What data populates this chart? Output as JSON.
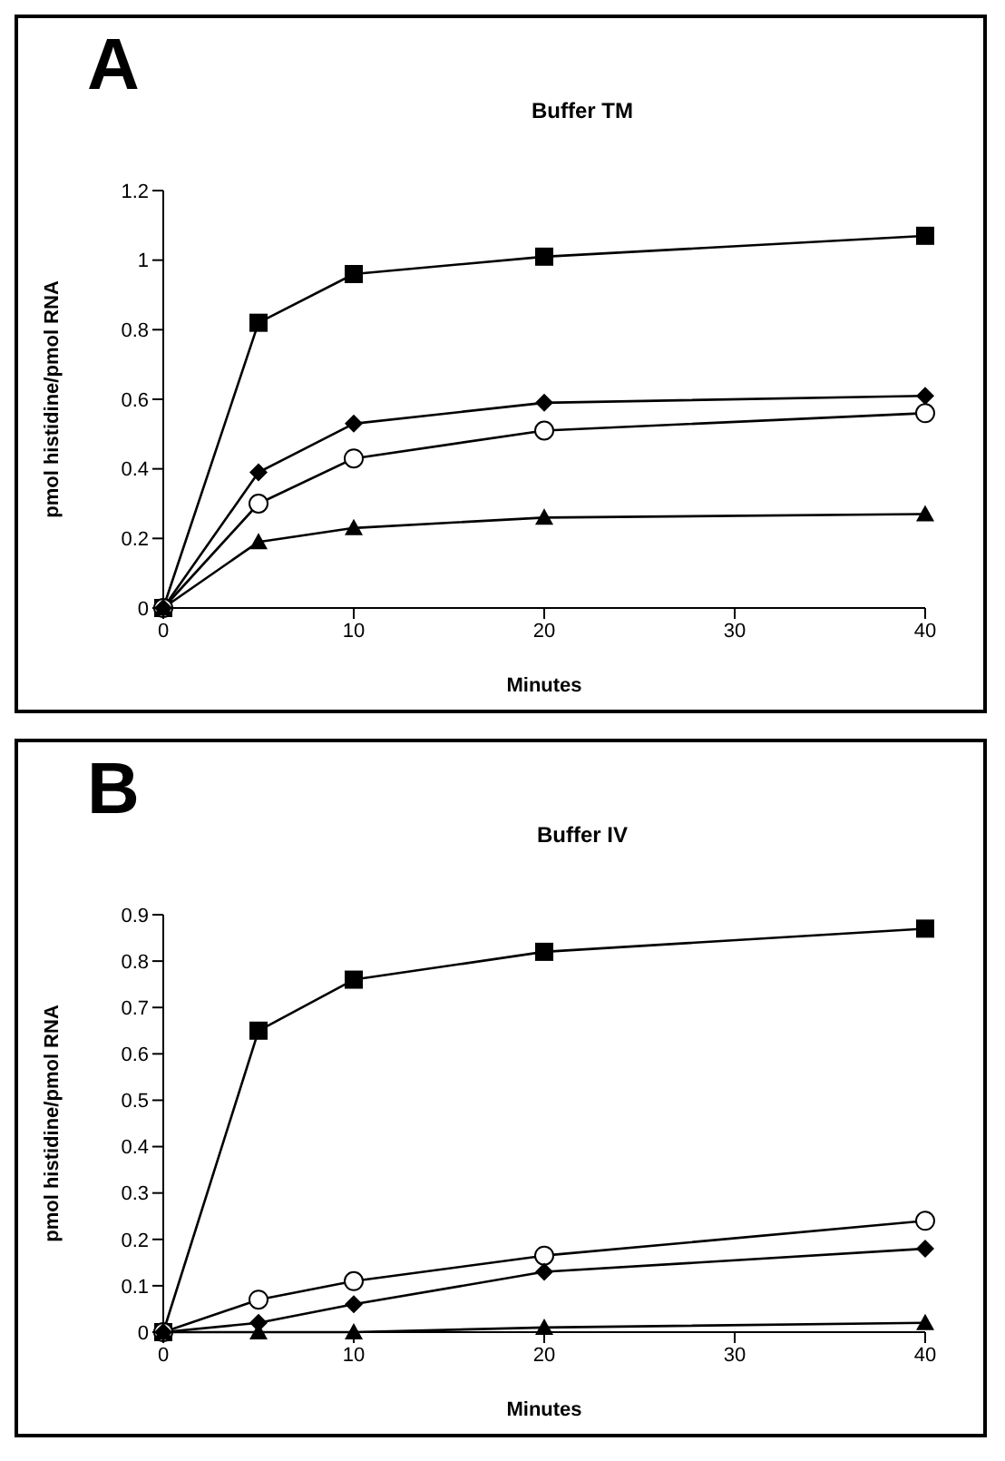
{
  "chart_data": [
    {
      "type": "line",
      "title": "Buffer TM",
      "xlabel": "Minutes",
      "ylabel": "pmol histidine/pmol RNA",
      "annotations": [
        "A"
      ],
      "x": [
        0,
        5,
        10,
        20,
        40
      ],
      "xlim": [
        0,
        40
      ],
      "xticks": [
        0,
        10,
        20,
        30,
        40
      ],
      "ylim": [
        0,
        1.2
      ],
      "yticks": [
        0,
        0.2,
        0.4,
        0.6,
        0.8,
        1,
        1.2
      ],
      "grid": false,
      "line_style": "solid",
      "series": [
        {
          "color": "#000000",
          "marker": "square",
          "values": [
            0,
            0.82,
            0.96,
            1.01,
            1.07
          ]
        },
        {
          "color": "#000000",
          "marker": "circle",
          "values": [
            0,
            0.3,
            0.43,
            0.51,
            0.56
          ]
        },
        {
          "color": "#000000",
          "marker": "diamond",
          "values": [
            0,
            0.39,
            0.53,
            0.59,
            0.61
          ]
        },
        {
          "color": "#000000",
          "marker": "triangle",
          "values": [
            0,
            0.19,
            0.23,
            0.26,
            0.27
          ]
        }
      ]
    },
    {
      "type": "line",
      "title": "Buffer IV",
      "xlabel": "Minutes",
      "ylabel": "pmol histidine/pmol RNA",
      "annotations": [
        "B"
      ],
      "x": [
        0,
        5,
        10,
        20,
        40
      ],
      "xlim": [
        0,
        40
      ],
      "xticks": [
        0,
        10,
        20,
        30,
        40
      ],
      "ylim": [
        0,
        0.9
      ],
      "yticks": [
        0,
        0.1,
        0.2,
        0.3,
        0.4,
        0.5,
        0.6,
        0.7,
        0.8,
        0.9
      ],
      "grid": false,
      "line_style": "solid",
      "series": [
        {
          "color": "#000000",
          "marker": "square",
          "values": [
            0,
            0.65,
            0.76,
            0.82,
            0.87
          ]
        },
        {
          "color": "#000000",
          "marker": "circle",
          "values": [
            0,
            0.07,
            0.11,
            0.165,
            0.24
          ]
        },
        {
          "color": "#000000",
          "marker": "diamond",
          "values": [
            0,
            0.02,
            0.06,
            0.13,
            0.18
          ]
        },
        {
          "color": "#000000",
          "marker": "triangle",
          "values": [
            0,
            0,
            0,
            0.01,
            0.02
          ]
        }
      ]
    }
  ]
}
